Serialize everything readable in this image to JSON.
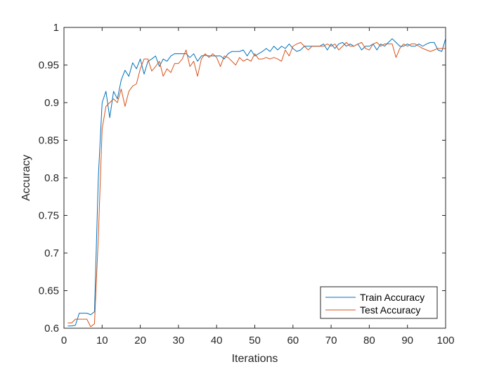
{
  "chart_data": {
    "type": "line",
    "title": "",
    "xlabel": "Iterations",
    "ylabel": "Accuracy",
    "xlim": [
      0,
      100
    ],
    "ylim": [
      0.6,
      1
    ],
    "xticks": [
      0,
      10,
      20,
      30,
      40,
      50,
      60,
      70,
      80,
      90,
      100
    ],
    "yticks": [
      0.6,
      0.65,
      0.7,
      0.75,
      0.8,
      0.85,
      0.9,
      0.95,
      1
    ],
    "ytick_labels": [
      "0.6",
      "0.65",
      "0.7",
      "0.75",
      "0.8",
      "0.85",
      "0.9",
      "0.95",
      "1"
    ],
    "grid": false,
    "legend": {
      "position": "bottom-right"
    },
    "x": [
      1,
      2,
      3,
      4,
      5,
      6,
      7,
      8,
      9,
      10,
      11,
      12,
      13,
      14,
      15,
      16,
      17,
      18,
      19,
      20,
      21,
      22,
      23,
      24,
      25,
      26,
      27,
      28,
      29,
      30,
      31,
      32,
      33,
      34,
      35,
      36,
      37,
      38,
      39,
      40,
      41,
      42,
      43,
      44,
      45,
      46,
      47,
      48,
      49,
      50,
      51,
      52,
      53,
      54,
      55,
      56,
      57,
      58,
      59,
      60,
      61,
      62,
      63,
      64,
      65,
      66,
      67,
      68,
      69,
      70,
      71,
      72,
      73,
      74,
      75,
      76,
      77,
      78,
      79,
      80,
      81,
      82,
      83,
      84,
      85,
      86,
      87,
      88,
      89,
      90,
      91,
      92,
      93,
      94,
      95,
      96,
      97,
      98,
      99,
      100
    ],
    "series": [
      {
        "name": "Train Accuracy",
        "color": "#0072BD",
        "values": [
          0.603,
          0.603,
          0.604,
          0.62,
          0.62,
          0.62,
          0.618,
          0.622,
          0.8,
          0.9,
          0.915,
          0.88,
          0.915,
          0.905,
          0.93,
          0.943,
          0.935,
          0.953,
          0.945,
          0.958,
          0.938,
          0.955,
          0.958,
          0.962,
          0.948,
          0.958,
          0.955,
          0.962,
          0.965,
          0.965,
          0.965,
          0.965,
          0.96,
          0.965,
          0.955,
          0.962,
          0.963,
          0.962,
          0.962,
          0.962,
          0.962,
          0.958,
          0.965,
          0.968,
          0.968,
          0.968,
          0.97,
          0.962,
          0.97,
          0.962,
          0.965,
          0.968,
          0.972,
          0.968,
          0.975,
          0.97,
          0.975,
          0.972,
          0.978,
          0.972,
          0.968,
          0.97,
          0.975,
          0.975,
          0.975,
          0.975,
          0.975,
          0.978,
          0.97,
          0.978,
          0.972,
          0.978,
          0.98,
          0.975,
          0.978,
          0.975,
          0.978,
          0.97,
          0.975,
          0.975,
          0.978,
          0.97,
          0.978,
          0.975,
          0.98,
          0.985,
          0.98,
          0.975,
          0.975,
          0.978,
          0.975,
          0.975,
          0.978,
          0.975,
          0.978,
          0.98,
          0.98,
          0.97,
          0.968,
          0.985
        ]
      },
      {
        "name": "Test Accuracy",
        "color": "#D95319",
        "values": [
          0.607,
          0.607,
          0.612,
          0.612,
          0.612,
          0.612,
          0.602,
          0.606,
          0.72,
          0.865,
          0.895,
          0.9,
          0.905,
          0.9,
          0.918,
          0.895,
          0.915,
          0.922,
          0.925,
          0.945,
          0.958,
          0.958,
          0.942,
          0.948,
          0.955,
          0.935,
          0.945,
          0.94,
          0.952,
          0.952,
          0.958,
          0.97,
          0.948,
          0.955,
          0.935,
          0.958,
          0.965,
          0.96,
          0.965,
          0.96,
          0.948,
          0.962,
          0.96,
          0.955,
          0.95,
          0.96,
          0.955,
          0.958,
          0.955,
          0.965,
          0.958,
          0.958,
          0.96,
          0.958,
          0.96,
          0.958,
          0.955,
          0.97,
          0.962,
          0.975,
          0.978,
          0.98,
          0.975,
          0.97,
          0.975,
          0.975,
          0.975,
          0.975,
          0.978,
          0.975,
          0.978,
          0.97,
          0.975,
          0.98,
          0.975,
          0.975,
          0.978,
          0.98,
          0.972,
          0.97,
          0.978,
          0.98,
          0.975,
          0.978,
          0.978,
          0.978,
          0.96,
          0.972,
          0.978,
          0.975,
          0.978,
          0.978,
          0.975,
          0.972,
          0.97,
          0.968,
          0.97,
          0.972,
          0.972,
          0.972
        ]
      }
    ]
  }
}
